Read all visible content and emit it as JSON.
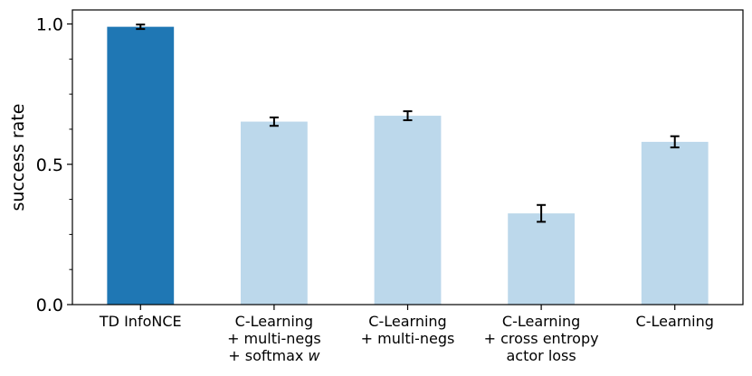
{
  "chart_data": {
    "type": "bar",
    "title": "",
    "xlabel": "",
    "ylabel": "success rate",
    "ylim": [
      0,
      1.05
    ],
    "yticks": [
      "0.0",
      "0.5",
      "1.0"
    ],
    "yticks_values": [
      0.0,
      0.5,
      1.0
    ],
    "minor_yticks": [
      0.125,
      0.25,
      0.375,
      0.625,
      0.75,
      0.875
    ],
    "grid": false,
    "legend": "none",
    "categories": [
      [
        "TD InfoNCE"
      ],
      [
        "C-Learning",
        "+ multi-negs",
        "+ softmax w"
      ],
      [
        "C-Learning",
        "+ multi-negs"
      ],
      [
        "C-Learning",
        "+ cross entropy",
        "actor loss"
      ],
      [
        "C-Learning"
      ]
    ],
    "values": [
      0.99,
      0.652,
      0.673,
      0.325,
      0.58
    ],
    "errors": [
      0.008,
      0.015,
      0.016,
      0.03,
      0.02
    ],
    "colors": [
      "#1f77b4",
      "#bcd8eb",
      "#bcd8eb",
      "#bcd8eb",
      "#bcd8eb"
    ]
  }
}
